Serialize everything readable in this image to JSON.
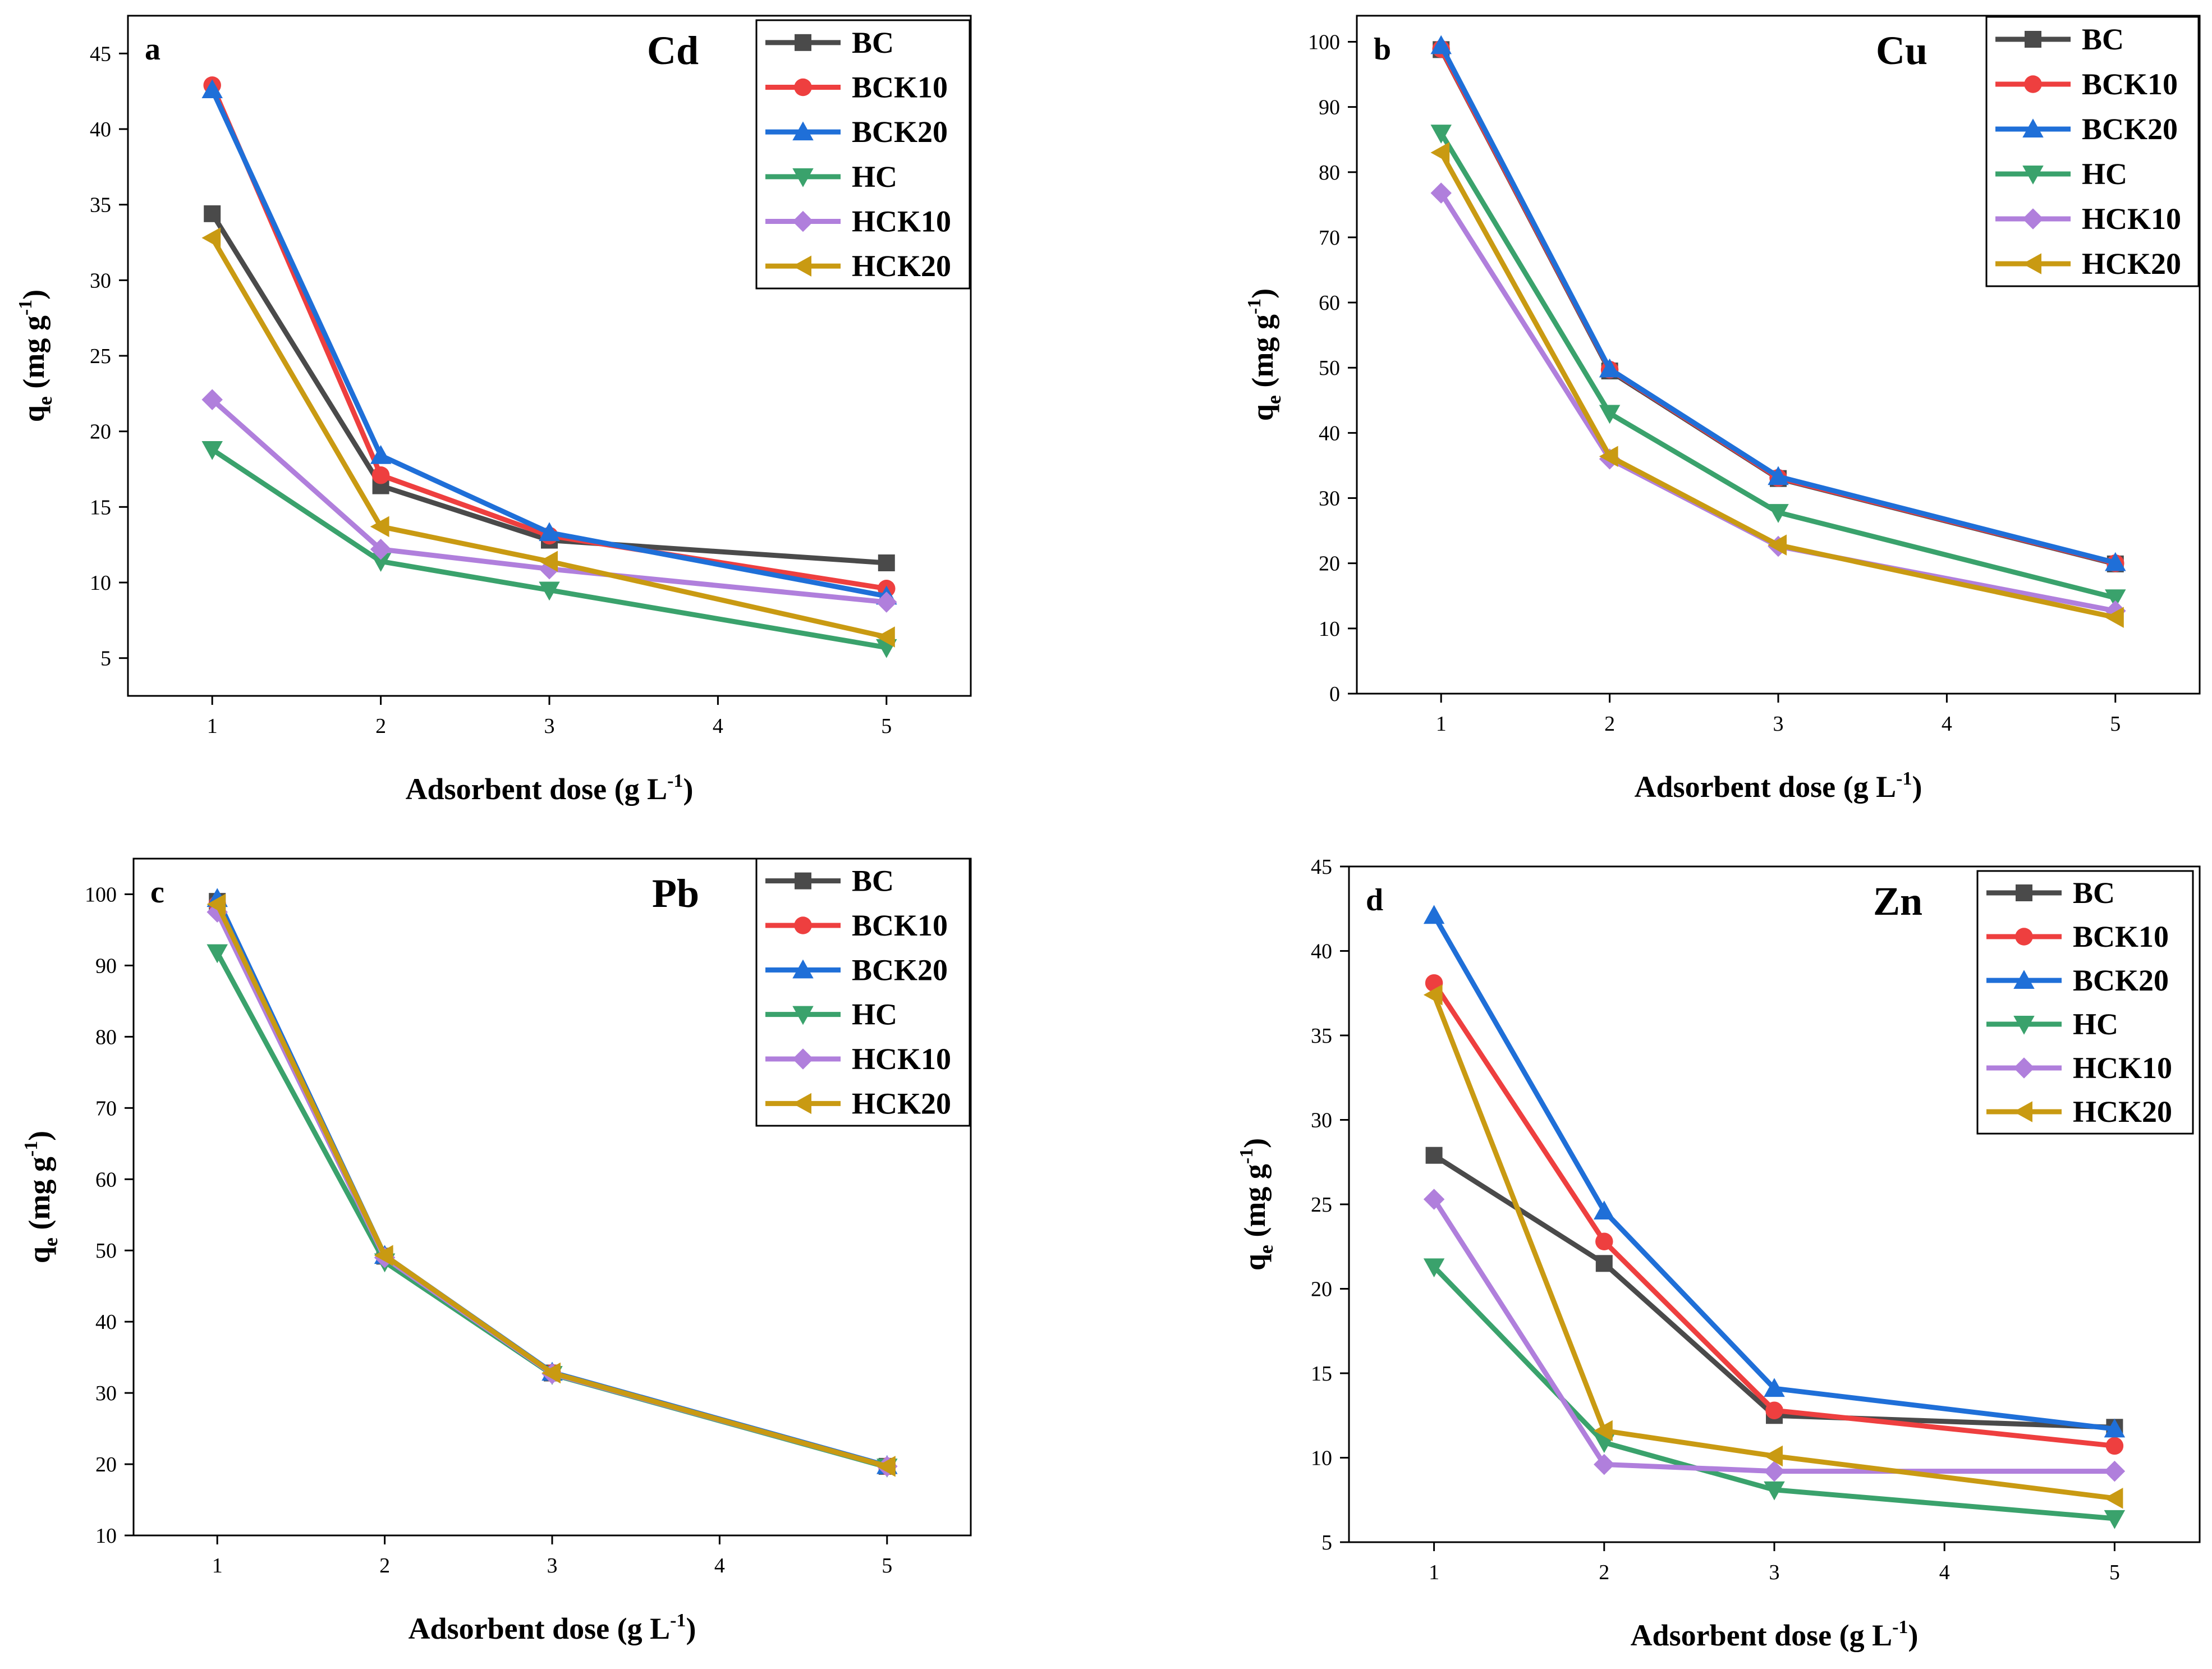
{
  "colors": {
    "BC": "#4a4a4a",
    "BCK10": "#ee3f3f",
    "BCK20": "#1f6fd8",
    "HC": "#3aa26c",
    "HCK10": "#b07fdc",
    "HCK20": "#c99a12"
  },
  "markers": {
    "BC": "square",
    "BCK10": "circle",
    "BCK20": "triangle-up",
    "HC": "triangle-down",
    "HCK10": "diamond",
    "HCK20": "triangle-left"
  },
  "chart_data": [
    {
      "type": "line",
      "panel": "a",
      "title": "Cd",
      "xlabel": "Adsorbent dose (g L-1)",
      "ylabel": "qe (mg g-1)",
      "x": [
        1,
        2,
        3,
        5
      ],
      "xlim": [
        0.5,
        5.5
      ],
      "xticks": [
        1,
        2,
        3,
        4,
        5
      ],
      "ylim": [
        2.5,
        47.5
      ],
      "yticks": [
        5,
        10,
        15,
        20,
        25,
        30,
        35,
        40,
        45
      ],
      "legend_position": "top-right",
      "series": [
        {
          "name": "BC",
          "values": [
            34.4,
            16.4,
            12.8,
            11.3
          ]
        },
        {
          "name": "BCK10",
          "values": [
            42.9,
            17.1,
            13.1,
            9.6
          ]
        },
        {
          "name": "BCK20",
          "values": [
            42.6,
            18.4,
            13.3,
            9.1
          ]
        },
        {
          "name": "HC",
          "values": [
            18.8,
            11.4,
            9.5,
            5.7
          ]
        },
        {
          "name": "HCK10",
          "values": [
            22.1,
            12.2,
            10.9,
            8.7
          ]
        },
        {
          "name": "HCK20",
          "values": [
            32.8,
            13.7,
            11.4,
            6.4
          ]
        }
      ]
    },
    {
      "type": "line",
      "panel": "b",
      "title": "Cu",
      "xlabel": "Adsorbent dose (g L-1)",
      "ylabel": "qe (mg g-1)",
      "x": [
        1,
        2,
        3,
        5
      ],
      "xlim": [
        0.5,
        5.5
      ],
      "xticks": [
        1,
        2,
        3,
        4,
        5
      ],
      "ylim": [
        0,
        104
      ],
      "yticks": [
        0,
        10,
        20,
        30,
        40,
        50,
        60,
        70,
        80,
        90,
        100
      ],
      "legend_position": "top-right",
      "series": [
        {
          "name": "BC",
          "values": [
            98.8,
            49.5,
            33.0,
            19.9
          ]
        },
        {
          "name": "BCK10",
          "values": [
            98.9,
            49.7,
            33.1,
            20.0
          ]
        },
        {
          "name": "BCK20",
          "values": [
            99.4,
            49.8,
            33.3,
            20.1
          ]
        },
        {
          "name": "HC",
          "values": [
            86.0,
            43.0,
            27.8,
            14.7
          ]
        },
        {
          "name": "HCK10",
          "values": [
            76.8,
            36.0,
            22.6,
            12.7
          ]
        },
        {
          "name": "HCK20",
          "values": [
            83.0,
            36.4,
            22.8,
            11.7
          ]
        }
      ]
    },
    {
      "type": "line",
      "panel": "c",
      "title": "Pb",
      "xlabel": "Adsorbent dose (g L-1)",
      "ylabel": "qe (mg g-1)",
      "x": [
        1,
        2,
        3,
        5
      ],
      "xlim": [
        0.5,
        5.5
      ],
      "xticks": [
        1,
        2,
        3,
        4,
        5
      ],
      "ylim": [
        10,
        105
      ],
      "yticks": [
        10,
        20,
        30,
        40,
        50,
        60,
        70,
        80,
        90,
        100
      ],
      "legend_position": "top-right",
      "series": [
        {
          "name": "BC",
          "values": [
            99.0,
            49.2,
            32.8,
            19.7
          ]
        },
        {
          "name": "BCK10",
          "values": [
            98.6,
            49.1,
            32.8,
            19.7
          ]
        },
        {
          "name": "BCK20",
          "values": [
            99.4,
            49.3,
            32.9,
            19.8
          ]
        },
        {
          "name": "HC",
          "values": [
            91.8,
            48.4,
            32.6,
            19.6
          ]
        },
        {
          "name": "HCK10",
          "values": [
            97.5,
            49.0,
            32.7,
            19.7
          ]
        },
        {
          "name": "HCK20",
          "values": [
            98.6,
            49.3,
            32.8,
            19.7
          ]
        }
      ]
    },
    {
      "type": "line",
      "panel": "d",
      "title": "Zn",
      "xlabel": "Adsorbent dose (g L-1)",
      "ylabel": "qe (mg g-1)",
      "x": [
        1,
        2,
        3,
        5
      ],
      "xlim": [
        0.5,
        5.5
      ],
      "xticks": [
        1,
        2,
        3,
        4,
        5
      ],
      "ylim": [
        5,
        45
      ],
      "yticks": [
        5,
        10,
        15,
        20,
        25,
        30,
        35,
        40,
        45
      ],
      "legend_position": "top-right",
      "series": [
        {
          "name": "BC",
          "values": [
            27.9,
            21.5,
            12.5,
            11.8
          ]
        },
        {
          "name": "BCK10",
          "values": [
            38.1,
            22.8,
            12.8,
            10.7
          ]
        },
        {
          "name": "BCK20",
          "values": [
            42.1,
            24.6,
            14.1,
            11.7
          ]
        },
        {
          "name": "HC",
          "values": [
            21.3,
            10.9,
            8.1,
            6.4
          ]
        },
        {
          "name": "HCK10",
          "values": [
            25.3,
            9.6,
            9.2,
            9.2
          ]
        },
        {
          "name": "HCK20",
          "values": [
            37.4,
            11.6,
            10.1,
            7.6
          ]
        }
      ]
    }
  ]
}
